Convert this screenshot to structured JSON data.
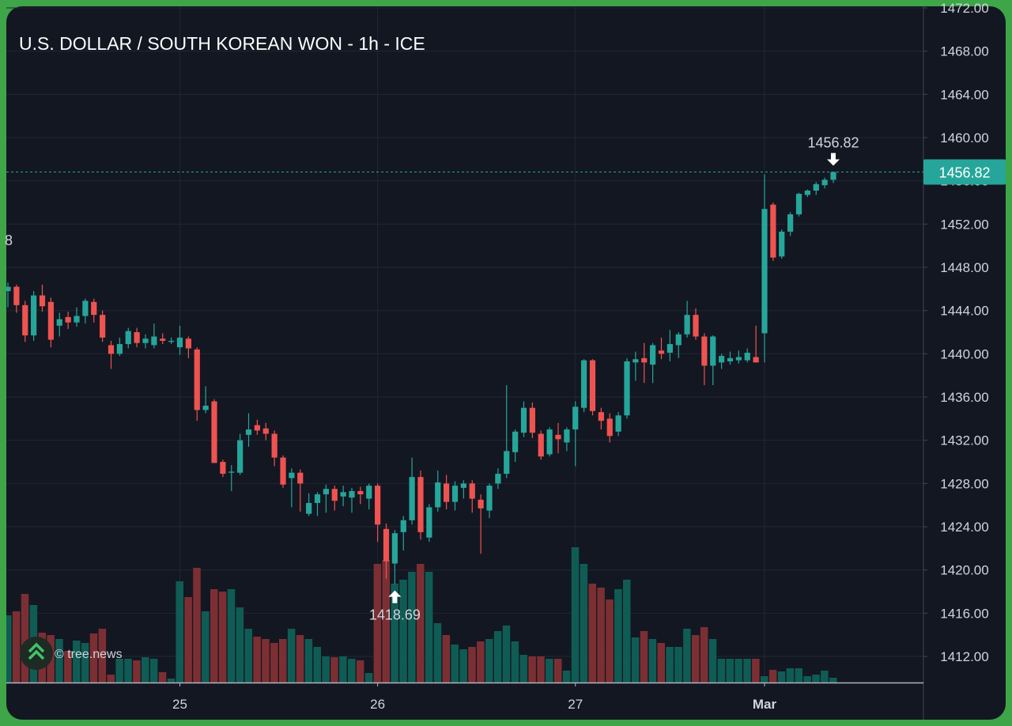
{
  "chart_data": {
    "type": "candlestick",
    "title": "U.S. DOLLAR / SOUTH KOREAN WON - 1h - ICE",
    "watermark": "© tree.news",
    "left_label": "8",
    "categories": [
      null,
      null,
      null,
      null,
      null,
      null,
      null,
      null,
      null,
      null,
      null,
      null,
      null,
      null,
      null,
      null,
      null,
      null,
      null,
      null,
      "25",
      null,
      null,
      null,
      null,
      null,
      null,
      null,
      null,
      null,
      null,
      null,
      null,
      null,
      null,
      null,
      null,
      null,
      null,
      null,
      null,
      null,
      null,
      "26",
      null,
      null,
      null,
      null,
      null,
      null,
      null,
      null,
      null,
      null,
      null,
      null,
      null,
      null,
      null,
      null,
      null,
      null,
      null,
      null,
      null,
      null,
      "27",
      null,
      null,
      null,
      null,
      null,
      null,
      null,
      null,
      null,
      null,
      null,
      null,
      null,
      null,
      null,
      null,
      null,
      null,
      null,
      null,
      null,
      "Mar",
      null,
      null,
      null,
      null,
      null,
      null,
      null,
      null
    ],
    "ohlc": [
      [
        1445.8,
        1446.6,
        1444.3,
        1446.2
      ],
      [
        1446.2,
        1446.4,
        1443.8,
        1444.5
      ],
      [
        1444.5,
        1444.9,
        1441.1,
        1441.7
      ],
      [
        1441.7,
        1445.8,
        1441.2,
        1445.4
      ],
      [
        1445.4,
        1446.4,
        1443.9,
        1444.4
      ],
      [
        1444.8,
        1445.2,
        1440.6,
        1441.3
      ],
      [
        1442.6,
        1443.8,
        1441.6,
        1443.2
      ],
      [
        1443.4,
        1443.9,
        1442.3,
        1442.9
      ],
      [
        1442.9,
        1444.3,
        1442.5,
        1443.5
      ],
      [
        1443.5,
        1445.1,
        1442.8,
        1444.9
      ],
      [
        1444.8,
        1445.1,
        1442.9,
        1443.6
      ],
      [
        1443.6,
        1444.0,
        1441.1,
        1441.5
      ],
      [
        1440.8,
        1441.2,
        1438.6,
        1440.0
      ],
      [
        1440.0,
        1441.5,
        1439.8,
        1440.9
      ],
      [
        1440.9,
        1442.4,
        1440.5,
        1442.1
      ],
      [
        1442.0,
        1442.4,
        1440.6,
        1441.0
      ],
      [
        1441.0,
        1441.8,
        1440.5,
        1441.4
      ],
      [
        1440.8,
        1442.8,
        1440.5,
        1441.6
      ],
      [
        1441.4,
        1441.9,
        1440.9,
        1441.2
      ],
      [
        1441.1,
        1441.5,
        1440.9,
        1441.2
      ],
      [
        1440.6,
        1442.6,
        1439.9,
        1441.5
      ],
      [
        1441.4,
        1441.6,
        1439.6,
        1440.5
      ],
      [
        1440.4,
        1440.6,
        1433.8,
        1434.8
      ],
      [
        1434.8,
        1437.0,
        1434.5,
        1435.2
      ],
      [
        1435.6,
        1435.8,
        1429.9,
        1429.9
      ],
      [
        1430.0,
        1430.2,
        1428.6,
        1428.9
      ],
      [
        1429.0,
        1429.7,
        1427.3,
        1429.1
      ],
      [
        1429.0,
        1432.6,
        1428.8,
        1432.0
      ],
      [
        1432.5,
        1434.5,
        1431.4,
        1433.0
      ],
      [
        1433.4,
        1433.9,
        1432.5,
        1432.9
      ],
      [
        1433.1,
        1433.6,
        1432.0,
        1432.6
      ],
      [
        1432.6,
        1432.9,
        1429.6,
        1430.4
      ],
      [
        1430.4,
        1430.6,
        1427.6,
        1427.9
      ],
      [
        1428.5,
        1429.4,
        1425.8,
        1429.0
      ],
      [
        1429.0,
        1429.3,
        1425.4,
        1428.0
      ],
      [
        1425.2,
        1427.1,
        1425.0,
        1426.2
      ],
      [
        1426.2,
        1427.2,
        1425.0,
        1427.0
      ],
      [
        1427.0,
        1427.9,
        1425.3,
        1427.5
      ],
      [
        1427.5,
        1427.8,
        1425.5,
        1426.4
      ],
      [
        1426.8,
        1427.8,
        1425.9,
        1427.2
      ],
      [
        1426.7,
        1427.6,
        1425.3,
        1427.3
      ],
      [
        1427.3,
        1427.7,
        1426.1,
        1427.0
      ],
      [
        1426.6,
        1428.0,
        1425.6,
        1427.8
      ],
      [
        1427.8,
        1428.0,
        1422.6,
        1424.2
      ],
      [
        1423.8,
        1424.3,
        1419.2,
        1420.8
      ],
      [
        1420.6,
        1423.7,
        1418.69,
        1423.4
      ],
      [
        1423.5,
        1425.0,
        1421.8,
        1424.6
      ],
      [
        1424.6,
        1430.4,
        1424.2,
        1428.6
      ],
      [
        1428.6,
        1429.2,
        1422.8,
        1423.5
      ],
      [
        1423.0,
        1426.1,
        1422.6,
        1425.8
      ],
      [
        1425.8,
        1429.2,
        1425.4,
        1428.1
      ],
      [
        1428.0,
        1428.8,
        1425.6,
        1426.3
      ],
      [
        1426.3,
        1428.2,
        1425.5,
        1427.8
      ],
      [
        1427.6,
        1428.3,
        1426.6,
        1428.0
      ],
      [
        1428.0,
        1428.3,
        1425.3,
        1426.6
      ],
      [
        1426.5,
        1427.0,
        1421.5,
        1425.7
      ],
      [
        1425.5,
        1428.0,
        1424.8,
        1427.8
      ],
      [
        1428.0,
        1429.4,
        1427.5,
        1428.9
      ],
      [
        1428.9,
        1437.1,
        1428.5,
        1431.0
      ],
      [
        1430.9,
        1433.0,
        1430.0,
        1432.8
      ],
      [
        1432.7,
        1435.6,
        1432.3,
        1435.0
      ],
      [
        1435.0,
        1435.5,
        1432.2,
        1432.7
      ],
      [
        1432.6,
        1432.9,
        1430.2,
        1430.5
      ],
      [
        1430.7,
        1433.2,
        1430.5,
        1433.0
      ],
      [
        1432.5,
        1433.6,
        1430.8,
        1432.1
      ],
      [
        1431.8,
        1433.2,
        1431.0,
        1433.0
      ],
      [
        1433.0,
        1435.6,
        1429.6,
        1435.1
      ],
      [
        1435.0,
        1439.5,
        1434.6,
        1439.4
      ],
      [
        1439.4,
        1439.5,
        1434.3,
        1434.7
      ],
      [
        1434.6,
        1435.0,
        1433.0,
        1433.8
      ],
      [
        1434.0,
        1434.5,
        1431.8,
        1432.4
      ],
      [
        1432.8,
        1434.6,
        1432.4,
        1434.3
      ],
      [
        1434.3,
        1439.6,
        1434.0,
        1439.3
      ],
      [
        1439.2,
        1440.2,
        1437.5,
        1439.5
      ],
      [
        1439.6,
        1441.0,
        1437.3,
        1439.2
      ],
      [
        1439.0,
        1441.0,
        1437.3,
        1440.8
      ],
      [
        1440.3,
        1441.5,
        1439.5,
        1440.0
      ],
      [
        1440.1,
        1442.2,
        1439.3,
        1440.9
      ],
      [
        1440.8,
        1442.0,
        1439.6,
        1441.8
      ],
      [
        1441.8,
        1444.9,
        1441.5,
        1443.6
      ],
      [
        1443.6,
        1444.2,
        1441.3,
        1441.6
      ],
      [
        1441.6,
        1441.9,
        1437.1,
        1438.9
      ],
      [
        1438.9,
        1441.7,
        1437.1,
        1441.6
      ],
      [
        1439.2,
        1440.0,
        1438.6,
        1439.8
      ],
      [
        1439.3,
        1440.2,
        1439.0,
        1439.6
      ],
      [
        1439.4,
        1440.3,
        1439.1,
        1439.7
      ],
      [
        1439.4,
        1440.5,
        1439.2,
        1440.1
      ],
      [
        1439.7,
        1442.6,
        1439.2,
        1439.2
      ],
      [
        1441.9,
        1456.6,
        1439.2,
        1453.4
      ],
      [
        1453.8,
        1454.0,
        1448.6,
        1448.9
      ],
      [
        1449.0,
        1451.5,
        1448.8,
        1451.3
      ],
      [
        1451.3,
        1453.1,
        1450.9,
        1452.9
      ],
      [
        1452.9,
        1454.9,
        1452.7,
        1454.8
      ],
      [
        1454.7,
        1455.2,
        1454.5,
        1455.1
      ],
      [
        1455.1,
        1455.9,
        1454.7,
        1455.7
      ],
      [
        1455.6,
        1456.3,
        1455.3,
        1456.1
      ],
      [
        1456.1,
        1456.82,
        1455.8,
        1456.82
      ]
    ],
    "volume": [
      85,
      90,
      112,
      98,
      63,
      60,
      55,
      40,
      53,
      50,
      62,
      68,
      10,
      30,
      30,
      28,
      32,
      30,
      13,
      5,
      128,
      108,
      145,
      90,
      118,
      115,
      118,
      95,
      68,
      58,
      55,
      50,
      55,
      68,
      60,
      55,
      45,
      33,
      32,
      33,
      30,
      28,
      12,
      150,
      155,
      125,
      130,
      140,
      150,
      140,
      75,
      60,
      48,
      42,
      45,
      52,
      55,
      65,
      72,
      52,
      35,
      33,
      33,
      30,
      30,
      15,
      171,
      150,
      125,
      120,
      105,
      118,
      130,
      57,
      65,
      55,
      50,
      45,
      45,
      68,
      60,
      70,
      55,
      30,
      30,
      30,
      30,
      30,
      8,
      16,
      14,
      18,
      18,
      8,
      10,
      15,
      6
    ],
    "ylim": [
      1409.59,
      1472
    ],
    "yticks": [
      {
        "value": 1412,
        "label": "1412.00"
      },
      {
        "value": 1416,
        "label": "1416.00"
      },
      {
        "value": 1420,
        "label": "1420.00"
      },
      {
        "value": 1424,
        "label": "1424.00"
      },
      {
        "value": 1428,
        "label": "1428.00"
      },
      {
        "value": 1432,
        "label": "1432.00"
      },
      {
        "value": 1436,
        "label": "1436.00"
      },
      {
        "value": 1440,
        "label": "1440.00"
      },
      {
        "value": 1444,
        "label": "1444.00"
      },
      {
        "value": 1448,
        "label": "1448.00"
      },
      {
        "value": 1452,
        "label": "1452.00"
      },
      {
        "value": 1456,
        "label": "1456.00"
      },
      {
        "value": 1460,
        "label": "1460.00"
      },
      {
        "value": 1464,
        "label": "1464.00"
      },
      {
        "value": 1468,
        "label": "1468.00"
      },
      {
        "value": 1472,
        "label": "1472.00"
      }
    ],
    "high_marker": 1456.82,
    "low_marker": 1418.69,
    "last_price": 1456.82,
    "up_color": "#26a69a",
    "down_color": "#ef5350",
    "up_volume_color": "#0f5c55",
    "down_volume_color": "#7c2f33",
    "grid": true
  }
}
